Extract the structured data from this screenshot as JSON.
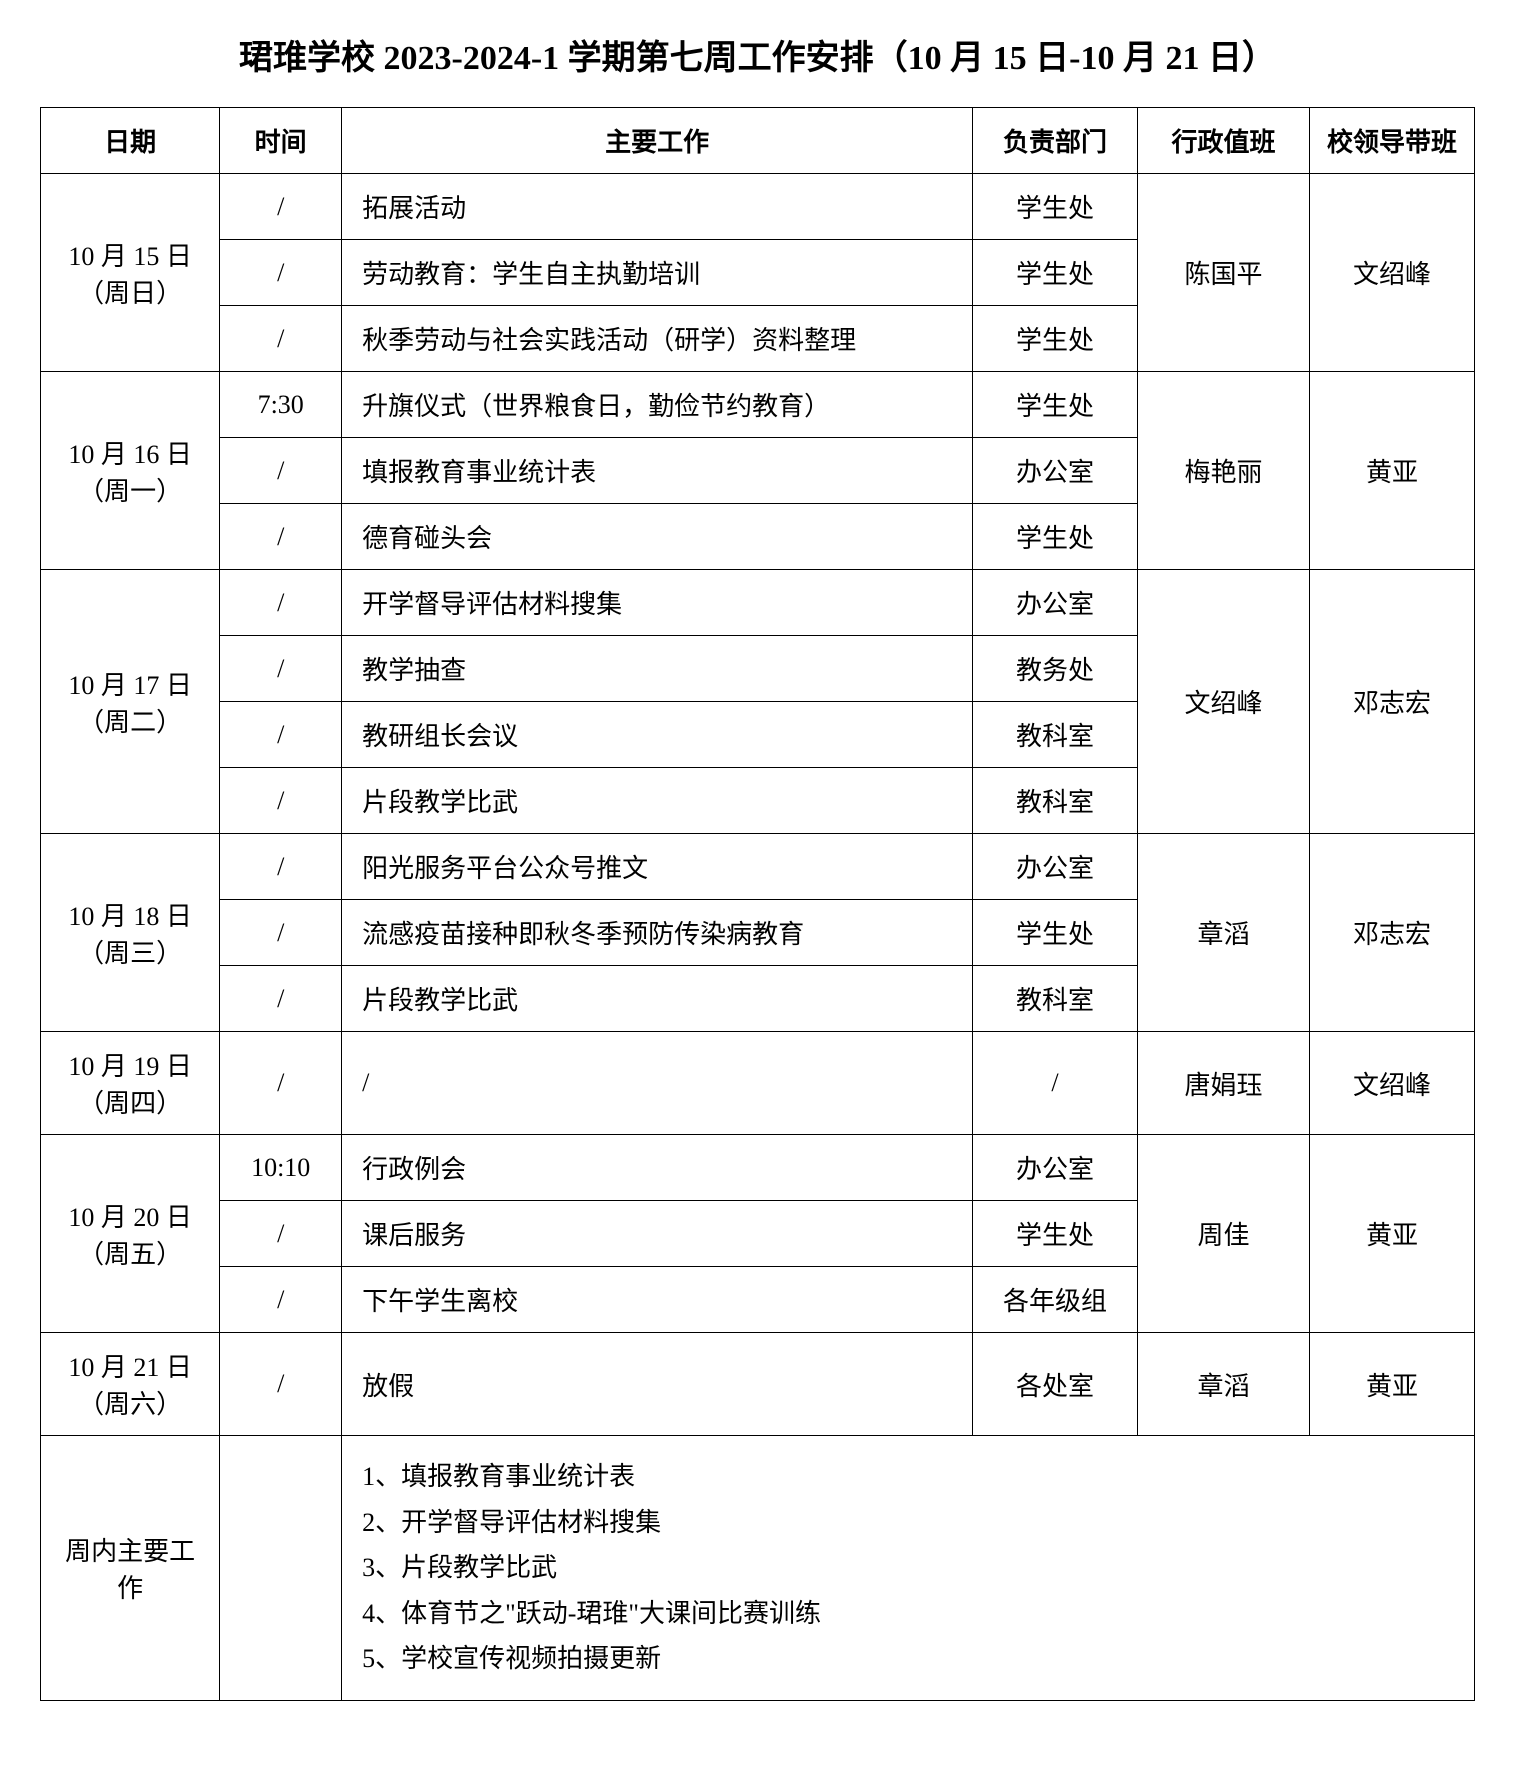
{
  "title": "珺琟学校 2023-2024-1 学期第七周工作安排（10 月 15 日-10 月 21 日）",
  "headers": {
    "date": "日期",
    "time": "时间",
    "work": "主要工作",
    "dept": "负责部门",
    "duty": "行政值班",
    "leader": "校领导带班"
  },
  "days": [
    {
      "date_line1": "10 月 15 日",
      "date_line2": "（周日）",
      "duty": "陈国平",
      "leader": "文绍峰",
      "rows": [
        {
          "time": "/",
          "work": "拓展活动",
          "dept": "学生处"
        },
        {
          "time": "/",
          "work": "劳动教育：学生自主执勤培训",
          "dept": "学生处"
        },
        {
          "time": "/",
          "work": "秋季劳动与社会实践活动（研学）资料整理",
          "dept": "学生处"
        }
      ]
    },
    {
      "date_line1": "10 月 16 日",
      "date_line2": "（周一）",
      "duty": "梅艳丽",
      "leader": "黄亚",
      "rows": [
        {
          "time": "7:30",
          "work": "升旗仪式（世界粮食日，勤俭节约教育）",
          "dept": "学生处"
        },
        {
          "time": "/",
          "work": "填报教育事业统计表",
          "dept": "办公室"
        },
        {
          "time": "/",
          "work": "德育碰头会",
          "dept": "学生处"
        }
      ]
    },
    {
      "date_line1": "10 月 17 日",
      "date_line2": "（周二）",
      "duty": "文绍峰",
      "leader": "邓志宏",
      "rows": [
        {
          "time": "/",
          "work": "开学督导评估材料搜集",
          "dept": "办公室"
        },
        {
          "time": "/",
          "work": "教学抽查",
          "dept": "教务处"
        },
        {
          "time": "/",
          "work": "教研组长会议",
          "dept": "教科室"
        },
        {
          "time": "/",
          "work": "片段教学比武",
          "dept": "教科室"
        }
      ]
    },
    {
      "date_line1": "10 月 18 日",
      "date_line2": "（周三）",
      "duty": "章滔",
      "leader": "邓志宏",
      "rows": [
        {
          "time": "/",
          "work": "阳光服务平台公众号推文",
          "dept": "办公室"
        },
        {
          "time": "/",
          "work": "流感疫苗接种即秋冬季预防传染病教育",
          "dept": "学生处"
        },
        {
          "time": "/",
          "work": "片段教学比武",
          "dept": "教科室"
        }
      ]
    },
    {
      "date_line1": "10 月 19 日",
      "date_line2": "（周四）",
      "duty": "唐娟珏",
      "leader": "文绍峰",
      "rows": [
        {
          "time": "/",
          "work": "/",
          "dept": "/"
        }
      ]
    },
    {
      "date_line1": "10 月 20 日",
      "date_line2": "（周五）",
      "duty": "周佳",
      "leader": "黄亚",
      "rows": [
        {
          "time": "10:10",
          "work": "行政例会",
          "dept": "办公室"
        },
        {
          "time": "/",
          "work": "课后服务",
          "dept": "学生处"
        },
        {
          "time": "/",
          "work": "下午学生离校",
          "dept": "各年级组"
        }
      ]
    },
    {
      "date_line1": "10 月 21 日",
      "date_line2": "（周六）",
      "duty": "章滔",
      "leader": "黄亚",
      "rows": [
        {
          "time": "/",
          "work": "放假",
          "dept": "各处室"
        }
      ]
    }
  ],
  "summary": {
    "label_line1": "周内主要工",
    "label_line2": "作",
    "items": [
      "1、填报教育事业统计表",
      "2、开学督导评估材料搜集",
      "3、片段教学比武",
      "4、体育节之\"跃动-珺琟\"大课间比赛训练",
      "5、学校宣传视频拍摄更新"
    ]
  },
  "style": {
    "fonts": {
      "title_size": 34,
      "cell_size": 26
    },
    "colors": {
      "bg": "#ffffff",
      "border": "#000000",
      "text": "#000000"
    },
    "col_widths_pct": [
      12.5,
      8.5,
      44,
      11.5,
      12,
      11.5
    ]
  }
}
